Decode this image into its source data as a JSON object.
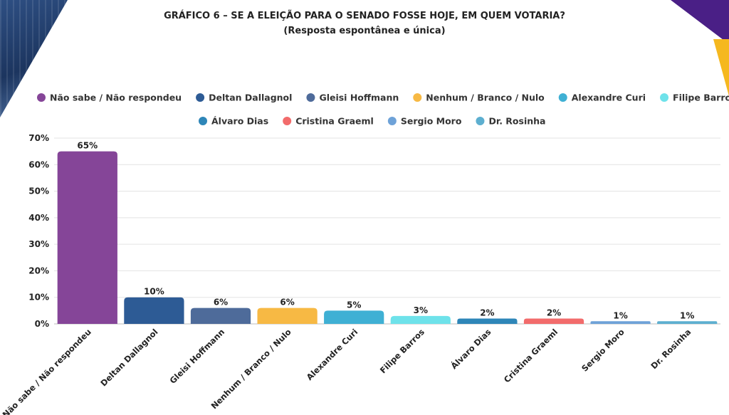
{
  "header": {
    "title": "GRÁFICO 6 – SE A ELEIÇÃO PARA O SENADO FOSSE HOJE, EM QUEM VOTARIA?",
    "subtitle": "(Resposta espontânea e única)"
  },
  "chart_data": {
    "type": "bar",
    "categories": [
      "Não sabe / Não respondeu",
      "Deltan Dallagnol",
      "Gleisi Hoffmann",
      "Nenhum / Branco / Nulo",
      "Alexandre Curi",
      "Filipe Barros",
      "Álvaro Dias",
      "Cristina Graeml",
      "Sergio Moro",
      "Dr. Rosinha"
    ],
    "values": [
      65,
      10,
      6,
      6,
      5,
      3,
      2,
      2,
      1,
      1
    ],
    "value_labels": [
      "65%",
      "10%",
      "6%",
      "6%",
      "5%",
      "3%",
      "2%",
      "2%",
      "1%",
      "1%"
    ],
    "colors": [
      "#854598",
      "#2d5b95",
      "#4e6b9a",
      "#f7b944",
      "#3fb0d4",
      "#6ee2ea",
      "#2e86b8",
      "#f26b6b",
      "#6ea2d8",
      "#5dafd0"
    ],
    "ylim": [
      0,
      70
    ],
    "yticks": [
      0,
      10,
      20,
      30,
      40,
      50,
      60,
      70
    ],
    "ytick_labels": [
      "0%",
      "10%",
      "20%",
      "30%",
      "40%",
      "50%",
      "60%",
      "70%"
    ],
    "grid": true,
    "legend_position": "top",
    "legend_rows": [
      [
        0,
        1,
        2,
        3,
        4,
        5
      ],
      [
        6,
        7,
        8,
        9
      ]
    ]
  }
}
